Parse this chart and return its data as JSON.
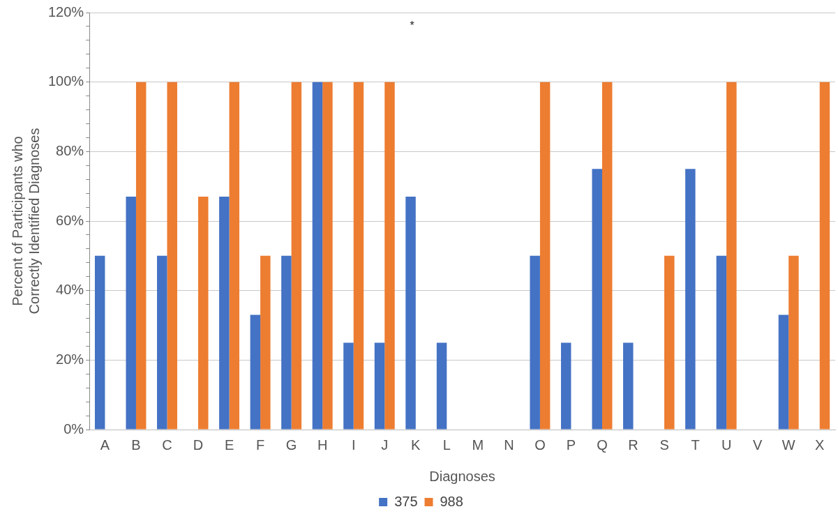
{
  "chart_data": {
    "type": "bar",
    "xlabel": "Diagnoses",
    "ylabel": "Percent of Participants who Correctly Identified Diagnoses",
    "categories": [
      "A",
      "B",
      "C",
      "D",
      "E",
      "F",
      "G",
      "H",
      "I",
      "J",
      "K",
      "L",
      "M",
      "N",
      "O",
      "P",
      "Q",
      "R",
      "S",
      "T",
      "U",
      "V",
      "W",
      "X"
    ],
    "series": [
      {
        "name": "375",
        "color": "#4472c4",
        "values": [
          50,
          67,
          50,
          0,
          67,
          33,
          50,
          100,
          25,
          25,
          67,
          25,
          0,
          0,
          50,
          25,
          75,
          25,
          0,
          75,
          50,
          0,
          33,
          0
        ]
      },
      {
        "name": "988",
        "color": "#ed7d31",
        "values": [
          0,
          100,
          100,
          67,
          100,
          50,
          100,
          100,
          100,
          100,
          0,
          0,
          0,
          0,
          100,
          0,
          100,
          0,
          50,
          0,
          100,
          0,
          50,
          100
        ]
      }
    ],
    "ylim": [
      0,
      120
    ],
    "yticks": [
      {
        "value": 0,
        "label": "0%"
      },
      {
        "value": 4,
        "label": null
      },
      {
        "value": 8,
        "label": null
      },
      {
        "value": 12,
        "label": null
      },
      {
        "value": 16,
        "label": null
      },
      {
        "value": 20,
        "label": "20%"
      },
      {
        "value": 24,
        "label": null
      },
      {
        "value": 28,
        "label": null
      },
      {
        "value": 32,
        "label": null
      },
      {
        "value": 36,
        "label": null
      },
      {
        "value": 40,
        "label": "40%"
      },
      {
        "value": 44,
        "label": null
      },
      {
        "value": 48,
        "label": null
      },
      {
        "value": 52,
        "label": null
      },
      {
        "value": 56,
        "label": null
      },
      {
        "value": 60,
        "label": "60%"
      },
      {
        "value": 64,
        "label": null
      },
      {
        "value": 68,
        "label": null
      },
      {
        "value": 72,
        "label": null
      },
      {
        "value": 76,
        "label": null
      },
      {
        "value": 80,
        "label": "80%"
      },
      {
        "value": 84,
        "label": null
      },
      {
        "value": 88,
        "label": null
      },
      {
        "value": 92,
        "label": null
      },
      {
        "value": 96,
        "label": null
      },
      {
        "value": 100,
        "label": "100%"
      },
      {
        "value": 104,
        "label": null
      },
      {
        "value": 108,
        "label": null
      },
      {
        "value": 112,
        "label": null
      },
      {
        "value": 116,
        "label": null
      },
      {
        "value": 120,
        "label": "120%"
      }
    ],
    "annotations": [
      "*"
    ],
    "grid": "y",
    "legend": "bottom"
  }
}
